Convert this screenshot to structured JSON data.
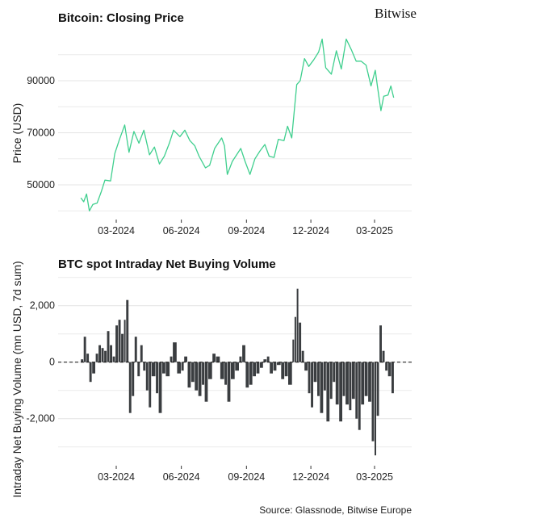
{
  "brand": "Bitwise",
  "source": "Source: Glassnode, Bitwise Europe",
  "chart_data": [
    {
      "type": "line",
      "title": "Bitcoin: Closing Price",
      "xlabel": "",
      "ylabel": "Price (USD)",
      "ylim": [
        37000,
        107000
      ],
      "yticks": [
        50000,
        70000,
        90000
      ],
      "xticks": [
        "03-2024",
        "06-2024",
        "09-2024",
        "12-2024",
        "03-2025"
      ],
      "grid": true,
      "color": "#3fcf8e",
      "points": [
        [
          "2024-01-11",
          45000
        ],
        [
          "2024-01-15",
          43500
        ],
        [
          "2024-01-19",
          46500
        ],
        [
          "2024-01-23",
          40000
        ],
        [
          "2024-01-28",
          42500
        ],
        [
          "2024-02-03",
          43000
        ],
        [
          "2024-02-09",
          47500
        ],
        [
          "2024-02-14",
          51800
        ],
        [
          "2024-02-22",
          51500
        ],
        [
          "2024-02-28",
          62000
        ],
        [
          "2024-03-05",
          67000
        ],
        [
          "2024-03-13",
          73000
        ],
        [
          "2024-03-19",
          62500
        ],
        [
          "2024-03-26",
          70500
        ],
        [
          "2024-04-02",
          66000
        ],
        [
          "2024-04-09",
          71000
        ],
        [
          "2024-04-17",
          61500
        ],
        [
          "2024-04-24",
          64500
        ],
        [
          "2024-05-01",
          58000
        ],
        [
          "2024-05-08",
          61000
        ],
        [
          "2024-05-15",
          66000
        ],
        [
          "2024-05-21",
          71000
        ],
        [
          "2024-05-30",
          68500
        ],
        [
          "2024-06-06",
          71000
        ],
        [
          "2024-06-13",
          67000
        ],
        [
          "2024-06-20",
          65000
        ],
        [
          "2024-06-26",
          61000
        ],
        [
          "2024-07-05",
          56500
        ],
        [
          "2024-07-11",
          57500
        ],
        [
          "2024-07-18",
          64000
        ],
        [
          "2024-07-28",
          68000
        ],
        [
          "2024-08-01",
          65000
        ],
        [
          "2024-08-05",
          54000
        ],
        [
          "2024-08-12",
          59000
        ],
        [
          "2024-08-24",
          64000
        ],
        [
          "2024-08-30",
          59000
        ],
        [
          "2024-09-06",
          54000
        ],
        [
          "2024-09-13",
          60000
        ],
        [
          "2024-09-20",
          63000
        ],
        [
          "2024-09-27",
          65500
        ],
        [
          "2024-10-03",
          61000
        ],
        [
          "2024-10-10",
          60500
        ],
        [
          "2024-10-16",
          67500
        ],
        [
          "2024-10-24",
          67000
        ],
        [
          "2024-10-29",
          72500
        ],
        [
          "2024-11-04",
          68000
        ],
        [
          "2024-11-11",
          88500
        ],
        [
          "2024-11-16",
          90000
        ],
        [
          "2024-11-22",
          98500
        ],
        [
          "2024-11-28",
          95500
        ],
        [
          "2024-12-05",
          98000
        ],
        [
          "2024-12-12",
          101000
        ],
        [
          "2024-12-17",
          106000
        ],
        [
          "2024-12-22",
          95000
        ],
        [
          "2024-12-30",
          92500
        ],
        [
          "2025-01-06",
          101500
        ],
        [
          "2025-01-13",
          94500
        ],
        [
          "2025-01-20",
          106000
        ],
        [
          "2025-01-27",
          102000
        ],
        [
          "2025-02-03",
          97500
        ],
        [
          "2025-02-10",
          97500
        ],
        [
          "2025-02-17",
          96000
        ],
        [
          "2025-02-24",
          88000
        ],
        [
          "2025-03-02",
          94000
        ],
        [
          "2025-03-05",
          88000
        ],
        [
          "2025-03-10",
          78500
        ],
        [
          "2025-03-14",
          84000
        ],
        [
          "2025-03-20",
          84500
        ],
        [
          "2025-03-24",
          88000
        ],
        [
          "2025-03-28",
          83500
        ]
      ]
    },
    {
      "type": "bar",
      "title": "BTC spot Intraday Net Buying Volume",
      "xlabel": "",
      "ylabel": "Intraday Net Buying Volume (mn USD, 7d sum)",
      "ylim": [
        -3600,
        3000
      ],
      "yticks": [
        -2000,
        0,
        2000
      ],
      "ytick_labels": [
        "-2,000",
        "0",
        "2,000"
      ],
      "xticks": [
        "03-2024",
        "06-2024",
        "09-2024",
        "12-2024",
        "03-2025"
      ],
      "grid": true,
      "zero_line": "dashed",
      "color": "#3a3d40",
      "points": [
        [
          "2024-01-11",
          100
        ],
        [
          "2024-01-15",
          900
        ],
        [
          "2024-01-19",
          300
        ],
        [
          "2024-01-23",
          -700
        ],
        [
          "2024-01-27",
          -400
        ],
        [
          "2024-02-01",
          300
        ],
        [
          "2024-02-05",
          600
        ],
        [
          "2024-02-09",
          500
        ],
        [
          "2024-02-13",
          400
        ],
        [
          "2024-02-17",
          1100
        ],
        [
          "2024-02-21",
          600
        ],
        [
          "2024-02-25",
          200
        ],
        [
          "2024-02-29",
          1300
        ],
        [
          "2024-03-04",
          1500
        ],
        [
          "2024-03-08",
          1000
        ],
        [
          "2024-03-12",
          1500
        ],
        [
          "2024-03-15",
          2200
        ],
        [
          "2024-03-19",
          -1800
        ],
        [
          "2024-03-23",
          -1200
        ],
        [
          "2024-03-27",
          900
        ],
        [
          "2024-03-31",
          -500
        ],
        [
          "2024-04-04",
          600
        ],
        [
          "2024-04-08",
          -300
        ],
        [
          "2024-04-12",
          -1000
        ],
        [
          "2024-04-16",
          -1600
        ],
        [
          "2024-04-20",
          -500
        ],
        [
          "2024-04-26",
          -1100
        ],
        [
          "2024-04-30",
          -1800
        ],
        [
          "2024-05-05",
          -400
        ],
        [
          "2024-05-10",
          -500
        ],
        [
          "2024-05-16",
          200
        ],
        [
          "2024-05-20",
          700
        ],
        [
          "2024-05-26",
          -400
        ],
        [
          "2024-06-01",
          -300
        ],
        [
          "2024-06-05",
          200
        ],
        [
          "2024-06-10",
          -900
        ],
        [
          "2024-06-15",
          -700
        ],
        [
          "2024-06-20",
          -1000
        ],
        [
          "2024-06-25",
          -1200
        ],
        [
          "2024-06-30",
          -800
        ],
        [
          "2024-07-04",
          -1400
        ],
        [
          "2024-07-09",
          -600
        ],
        [
          "2024-07-15",
          300
        ],
        [
          "2024-07-20",
          200
        ],
        [
          "2024-07-26",
          -600
        ],
        [
          "2024-08-01",
          -800
        ],
        [
          "2024-08-05",
          -1400
        ],
        [
          "2024-08-10",
          -600
        ],
        [
          "2024-08-16",
          -300
        ],
        [
          "2024-08-22",
          200
        ],
        [
          "2024-08-26",
          600
        ],
        [
          "2024-08-31",
          -900
        ],
        [
          "2024-09-05",
          -800
        ],
        [
          "2024-09-10",
          -500
        ],
        [
          "2024-09-15",
          -400
        ],
        [
          "2024-09-20",
          -200
        ],
        [
          "2024-09-25",
          100
        ],
        [
          "2024-09-30",
          200
        ],
        [
          "2024-10-04",
          -400
        ],
        [
          "2024-10-09",
          -300
        ],
        [
          "2024-10-14",
          -100
        ],
        [
          "2024-10-20",
          -600
        ],
        [
          "2024-10-25",
          -500
        ],
        [
          "2024-10-30",
          -800
        ],
        [
          "2024-11-05",
          800
        ],
        [
          "2024-11-08",
          1600
        ],
        [
          "2024-11-11",
          2600
        ],
        [
          "2024-11-14",
          1400
        ],
        [
          "2024-11-18",
          400
        ],
        [
          "2024-11-22",
          -300
        ],
        [
          "2024-11-27",
          -1100
        ],
        [
          "2024-12-01",
          -1600
        ],
        [
          "2024-12-05",
          -700
        ],
        [
          "2024-12-10",
          -1200
        ],
        [
          "2024-12-14",
          -1800
        ],
        [
          "2024-12-19",
          -1000
        ],
        [
          "2024-12-23",
          -2100
        ],
        [
          "2024-12-28",
          -1300
        ],
        [
          "2025-01-01",
          -700
        ],
        [
          "2025-01-05",
          -1500
        ],
        [
          "2025-01-10",
          -2100
        ],
        [
          "2025-01-15",
          -1200
        ],
        [
          "2025-01-19",
          -1500
        ],
        [
          "2025-01-24",
          -1700
        ],
        [
          "2025-01-28",
          -1300
        ],
        [
          "2025-02-02",
          -2000
        ],
        [
          "2025-02-06",
          -2400
        ],
        [
          "2025-02-10",
          -1500
        ],
        [
          "2025-02-15",
          -1200
        ],
        [
          "2025-02-20",
          -1400
        ],
        [
          "2025-02-25",
          -2800
        ],
        [
          "2025-03-01",
          -3300
        ],
        [
          "2025-03-04",
          -1900
        ],
        [
          "2025-03-08",
          1300
        ],
        [
          "2025-03-12",
          400
        ],
        [
          "2025-03-16",
          -300
        ],
        [
          "2025-03-20",
          -500
        ],
        [
          "2025-03-25",
          -1100
        ]
      ]
    }
  ]
}
